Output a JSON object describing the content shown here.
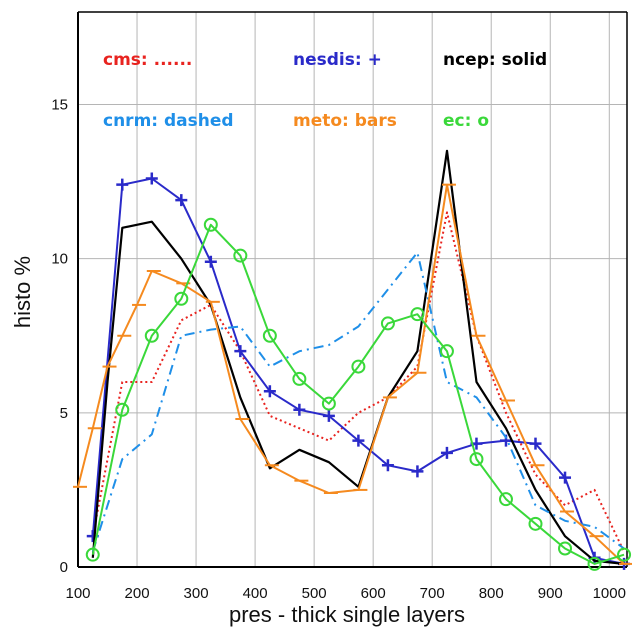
{
  "chart_data": {
    "type": "line",
    "title": "",
    "xlabel": "pres - thick single layers",
    "ylabel": "histo %",
    "xlim": [
      100,
      1030
    ],
    "ylim": [
      0,
      18
    ],
    "xticks": [
      100,
      200,
      300,
      400,
      500,
      600,
      700,
      800,
      900,
      1000
    ],
    "yticks": [
      0,
      5,
      10,
      15
    ],
    "grid": true,
    "legend_position": "top",
    "legend": [
      {
        "key": "cms",
        "text": "cms: ......",
        "color": "#e8231f"
      },
      {
        "key": "nesdis",
        "text": "nesdis: +",
        "color": "#2a2ac9"
      },
      {
        "key": "ncep",
        "text": "ncep: solid",
        "color": "#000000"
      },
      {
        "key": "cnrm",
        "text": "cnrm: dashed",
        "color": "#1f8fe8"
      },
      {
        "key": "meto",
        "text": "meto: bars",
        "color": "#f58a1f"
      },
      {
        "key": "ec",
        "text": "ec: o",
        "color": "#3ad83a"
      }
    ],
    "series": [
      {
        "key": "cms",
        "color": "#e8231f",
        "style": "dotted",
        "x": [
          125,
          175,
          225,
          275,
          325,
          375,
          425,
          475,
          525,
          575,
          625,
          675,
          725,
          775,
          825,
          875,
          925,
          975,
          1025
        ],
        "y": [
          1.0,
          6.0,
          6.0,
          8.0,
          8.5,
          7.0,
          4.9,
          4.5,
          4.1,
          5.0,
          5.5,
          6.5,
          11.5,
          7.5,
          5.0,
          3.0,
          2.0,
          2.5,
          0.5
        ]
      },
      {
        "key": "nesdis",
        "color": "#2a2ac9",
        "style": "plus",
        "x": [
          125,
          175,
          225,
          275,
          325,
          375,
          425,
          475,
          525,
          575,
          625,
          675,
          725,
          775,
          825,
          875,
          925,
          975,
          1025
        ],
        "y": [
          1.0,
          12.4,
          12.6,
          11.9,
          9.9,
          7.0,
          5.7,
          5.1,
          4.9,
          4.1,
          3.3,
          3.1,
          3.7,
          4.0,
          4.1,
          4.0,
          2.9,
          0.3,
          0.1
        ]
      },
      {
        "key": "ncep",
        "color": "#000000",
        "style": "solid",
        "x": [
          125,
          150,
          175,
          225,
          275,
          325,
          375,
          425,
          475,
          525,
          575,
          625,
          675,
          725,
          775,
          825,
          875,
          925,
          975,
          1025
        ],
        "y": [
          0.3,
          6.0,
          11.0,
          11.2,
          10.0,
          8.5,
          5.5,
          3.2,
          3.8,
          3.4,
          2.6,
          5.5,
          7.0,
          13.5,
          6.0,
          4.5,
          2.5,
          1.0,
          0.2,
          0.1
        ]
      },
      {
        "key": "cnrm",
        "color": "#1f8fe8",
        "style": "dashdot",
        "x": [
          125,
          175,
          225,
          275,
          325,
          375,
          425,
          475,
          525,
          575,
          625,
          675,
          725,
          775,
          825,
          875,
          925,
          975,
          1025
        ],
        "y": [
          0.5,
          3.5,
          4.3,
          7.5,
          7.7,
          7.8,
          6.5,
          7.0,
          7.2,
          7.8,
          9.0,
          10.2,
          6.0,
          5.5,
          4.2,
          2.0,
          1.5,
          1.3,
          0.6
        ]
      },
      {
        "key": "meto",
        "color": "#f58a1f",
        "style": "bars",
        "x": [
          100,
          125,
          150,
          175,
          200,
          225,
          275,
          325,
          375,
          425,
          475,
          525,
          575,
          625,
          675,
          725,
          775,
          825,
          875,
          925,
          975,
          1025
        ],
        "y": [
          2.6,
          4.5,
          6.5,
          7.5,
          8.5,
          9.6,
          9.2,
          8.6,
          4.8,
          3.3,
          2.8,
          2.4,
          2.5,
          5.5,
          6.3,
          12.4,
          7.5,
          5.4,
          3.3,
          1.8,
          1.0,
          0.1
        ]
      },
      {
        "key": "ec",
        "color": "#3ad83a",
        "style": "circles",
        "x": [
          125,
          175,
          225,
          275,
          325,
          375,
          425,
          475,
          525,
          575,
          625,
          675,
          725,
          775,
          825,
          875,
          925,
          975,
          1025
        ],
        "y": [
          0.4,
          5.1,
          7.5,
          8.7,
          11.1,
          10.1,
          7.5,
          6.1,
          5.3,
          6.5,
          7.9,
          8.2,
          7.0,
          3.5,
          2.2,
          1.4,
          0.6,
          0.1,
          0.4
        ]
      }
    ]
  }
}
